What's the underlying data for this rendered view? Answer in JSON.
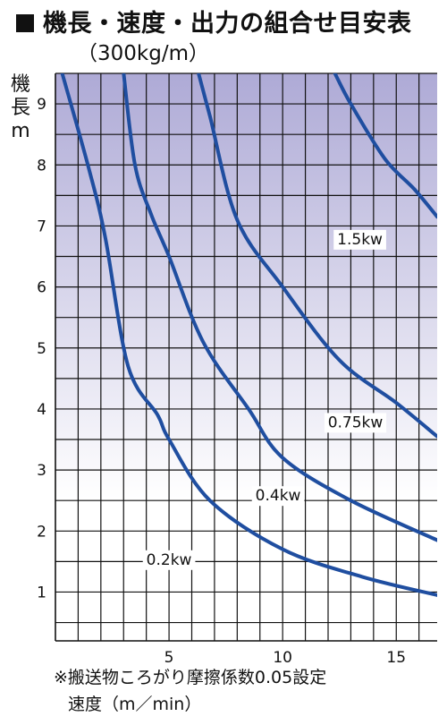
{
  "header": {
    "title": "機長・速度・出力の組合せ目安表",
    "subtitle": "（300kg/m）"
  },
  "footer": {
    "note": "※搬送物ころがり摩擦係数0.05設定"
  },
  "chart_data": {
    "type": "line",
    "title": "機長・速度・出力の組合せ目安表",
    "subtitle": "（300kg/m）",
    "ylabel": "機長 m",
    "xlabel": "速度（m／min）",
    "xlim": [
      0,
      16.8
    ],
    "ylim": [
      0.2,
      9.5
    ],
    "x_ticks": [
      5,
      10,
      15
    ],
    "y_ticks": [
      1,
      2,
      3,
      4,
      5,
      6,
      7,
      8,
      9
    ],
    "grid": true,
    "background": "gradient",
    "colors": {
      "line": "#1f4ea0",
      "grid": "#111111",
      "gradient_top": "#aeaad6",
      "gradient_bottom": "#ffffff"
    },
    "series": [
      {
        "name": "0.2kw",
        "label": "0.2kw",
        "label_at": [
          5.0,
          1.45
        ],
        "values": [
          [
            0.3,
            9.5
          ],
          [
            1.5,
            7.9
          ],
          [
            2.2,
            6.8
          ],
          [
            3.2,
            4.7
          ],
          [
            4.5,
            3.9
          ],
          [
            5.0,
            3.5
          ],
          [
            6.8,
            2.5
          ],
          [
            10.0,
            1.7
          ],
          [
            13.5,
            1.25
          ],
          [
            16.8,
            0.95
          ]
        ]
      },
      {
        "name": "0.4kw",
        "label": "0.4kw",
        "label_at": [
          9.8,
          2.5
        ],
        "values": [
          [
            3.0,
            9.5
          ],
          [
            3.5,
            8.0
          ],
          [
            4.2,
            7.2
          ],
          [
            5.0,
            6.5
          ],
          [
            6.5,
            5.1
          ],
          [
            8.5,
            4.0
          ],
          [
            10.0,
            3.2
          ],
          [
            13.0,
            2.5
          ],
          [
            16.8,
            1.85
          ]
        ]
      },
      {
        "name": "0.75kw",
        "label": "0.75kw",
        "label_at": [
          13.2,
          3.7
        ],
        "values": [
          [
            6.3,
            9.5
          ],
          [
            6.8,
            8.8
          ],
          [
            8.0,
            7.1
          ],
          [
            10.0,
            6.0
          ],
          [
            12.5,
            4.8
          ],
          [
            15.0,
            4.1
          ],
          [
            16.8,
            3.55
          ]
        ]
      },
      {
        "name": "1.5kw",
        "label": "1.5kw",
        "label_at": [
          13.4,
          6.7
        ],
        "values": [
          [
            12.3,
            9.5
          ],
          [
            13.0,
            9.0
          ],
          [
            14.5,
            8.1
          ],
          [
            15.8,
            7.6
          ],
          [
            16.8,
            7.15
          ]
        ]
      }
    ]
  }
}
